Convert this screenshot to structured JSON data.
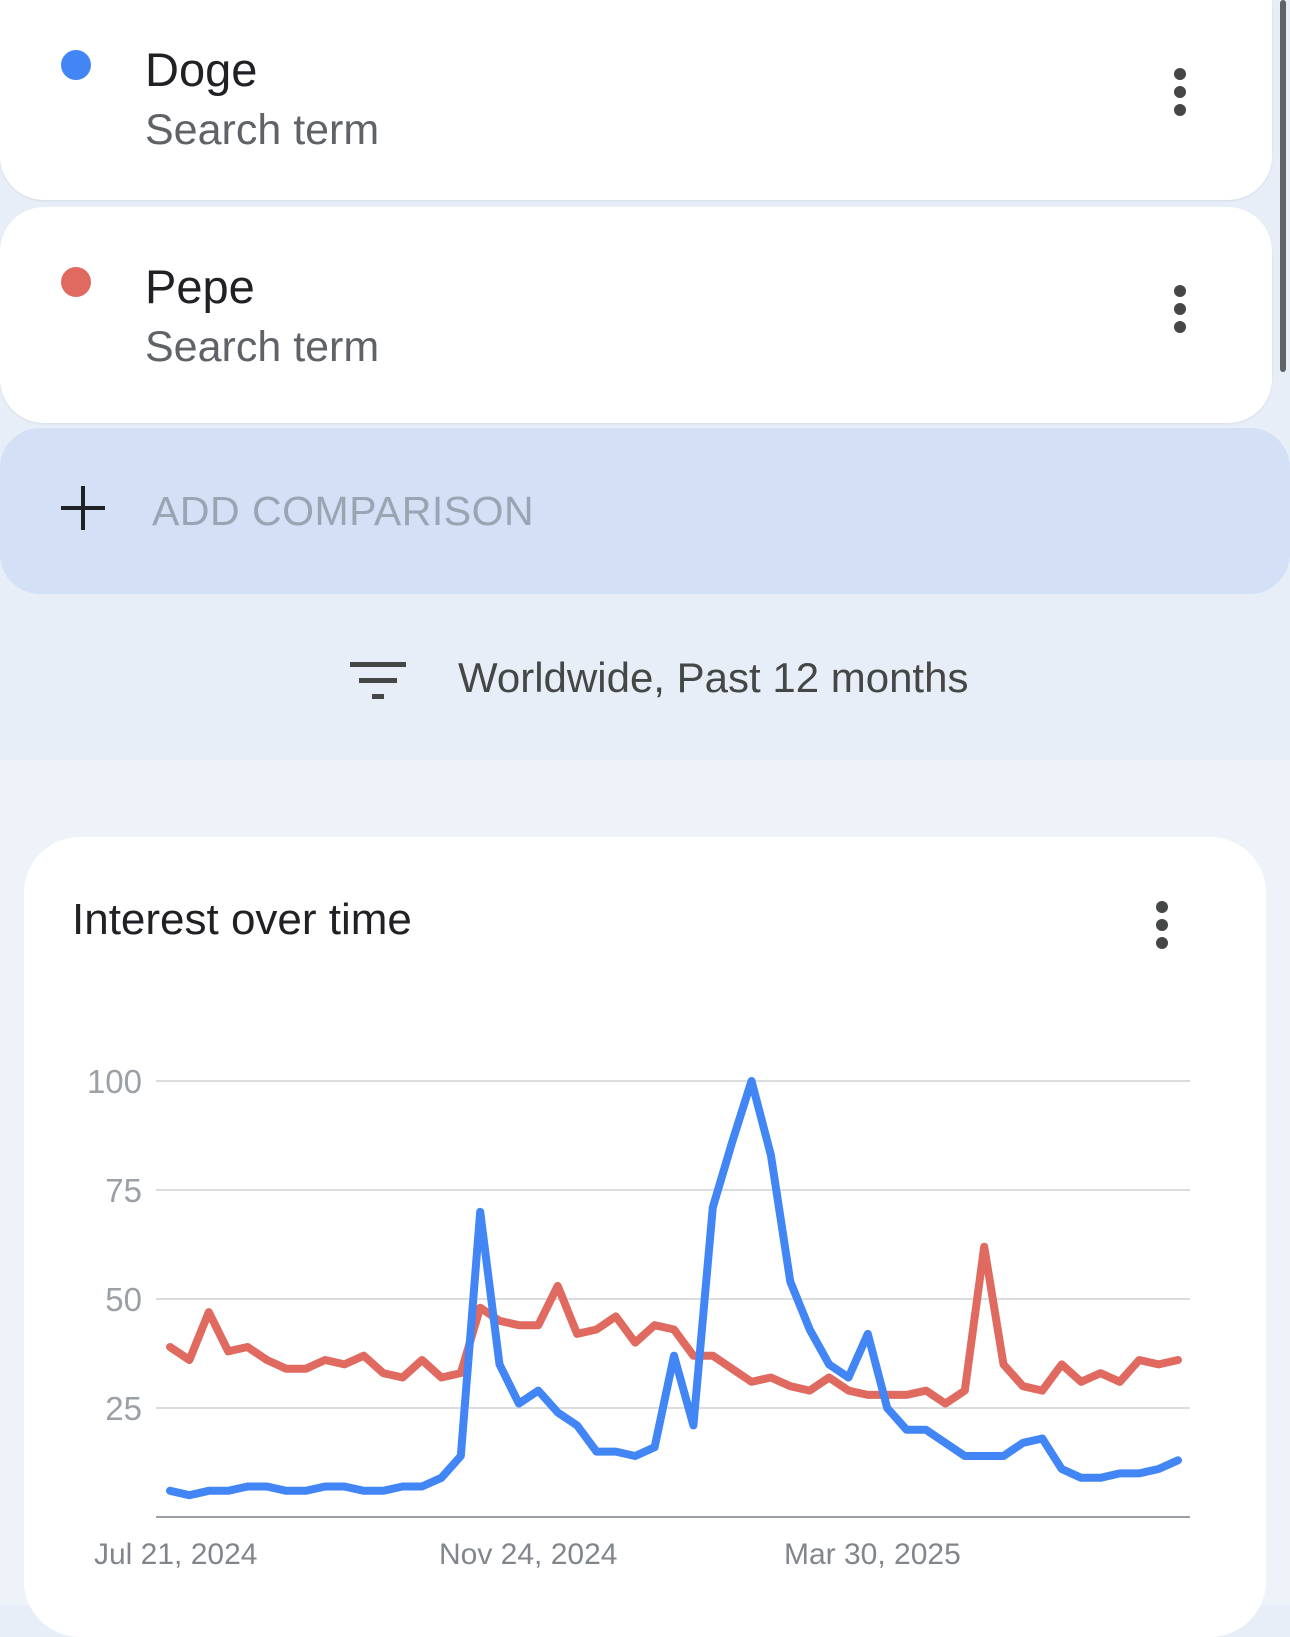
{
  "terms": [
    {
      "name": "Doge",
      "type": "Search term",
      "color": "#4285f4"
    },
    {
      "name": "Pepe",
      "type": "Search term",
      "color": "#e06a5f"
    }
  ],
  "add_comparison_label": "ADD COMPARISON",
  "filter_label": "Worldwide, Past 12 months",
  "chart_title": "Interest over time",
  "chart_data": {
    "type": "line",
    "title": "Interest over time",
    "ylim": [
      0,
      100
    ],
    "y_ticks": [
      25,
      50,
      75,
      100
    ],
    "x_tick_labels": [
      "Jul 21, 2024",
      "Nov 24, 2024",
      "Mar 30, 2025"
    ],
    "grid": true,
    "series": [
      {
        "name": "Doge",
        "color": "#4285f4",
        "values": [
          6,
          5,
          6,
          6,
          7,
          7,
          6,
          6,
          7,
          7,
          6,
          6,
          7,
          7,
          9,
          14,
          70,
          35,
          26,
          29,
          24,
          21,
          15,
          15,
          14,
          16,
          37,
          21,
          71,
          86,
          100,
          83,
          54,
          43,
          35,
          32,
          42,
          25,
          20,
          20,
          17,
          14,
          14,
          14,
          17,
          18,
          11,
          9,
          9,
          10,
          10,
          11,
          13
        ]
      },
      {
        "name": "Pepe",
        "color": "#e06a5f",
        "values": [
          39,
          36,
          47,
          38,
          39,
          36,
          34,
          34,
          36,
          35,
          37,
          33,
          32,
          36,
          32,
          33,
          48,
          45,
          44,
          44,
          53,
          42,
          43,
          46,
          40,
          44,
          43,
          37,
          37,
          34,
          31,
          32,
          30,
          29,
          32,
          29,
          28,
          28,
          28,
          29,
          26,
          29,
          62,
          35,
          30,
          29,
          35,
          31,
          33,
          31,
          36,
          35,
          36
        ]
      }
    ]
  }
}
